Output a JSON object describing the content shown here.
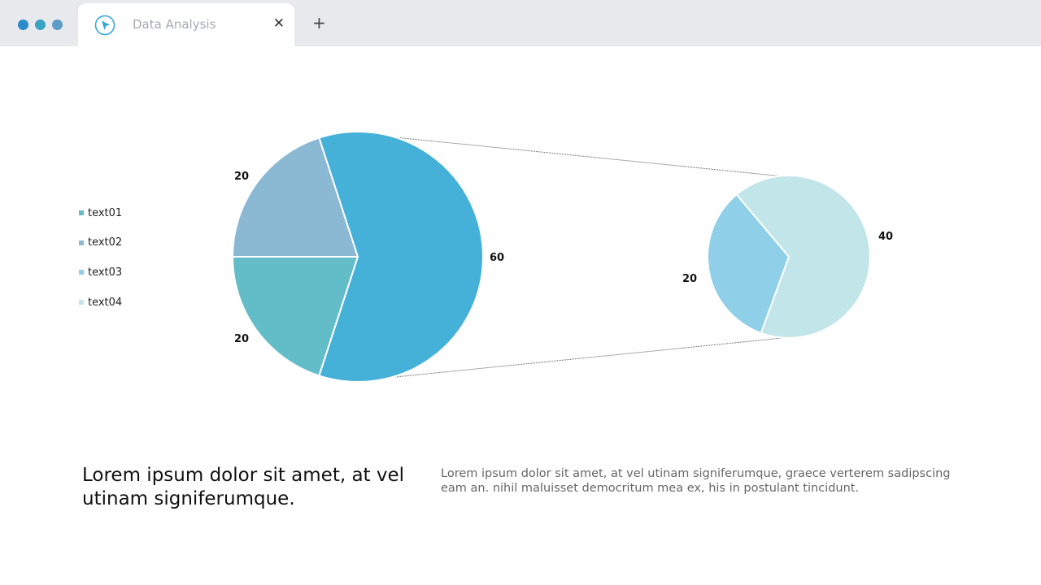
{
  "window": {
    "dot_colors": [
      "#2b8bc9",
      "#3aa3c2",
      "#5d9cc7"
    ],
    "tab_title": "Data Analysis",
    "tab_icon": "cursor-arrow-icon",
    "close_icon": "close-icon",
    "close_label": "✕",
    "new_tab_icon": "plus-icon",
    "new_tab_label": "+"
  },
  "chart_data": [
    {
      "type": "pie",
      "title": "",
      "categories": [
        "text01",
        "text02",
        "text03"
      ],
      "values": [
        20,
        20,
        60
      ],
      "colors": [
        "#63bdc8",
        "#8bb8d3",
        "#45b1d9"
      ],
      "data_labels": [
        "20",
        "20",
        "60"
      ]
    },
    {
      "type": "pie",
      "title": "",
      "categories": [
        "text03",
        "text04"
      ],
      "values": [
        20,
        40
      ],
      "colors": [
        "#8fcfe8",
        "#c2e5e9"
      ],
      "data_labels": [
        "20",
        "40"
      ]
    }
  ],
  "legend": {
    "placement": "left",
    "items": [
      {
        "label": "text01",
        "color": "#63bdc8"
      },
      {
        "label": "text02",
        "color": "#8bb8d3"
      },
      {
        "label": "text03",
        "color": "#8fcfe8"
      },
      {
        "label": "text04",
        "color": "#c2e5e9"
      }
    ]
  },
  "content": {
    "heading": "Lorem ipsum dolor sit amet, at vel utinam signiferumque.",
    "body": "Lorem ipsum dolor sit amet, at vel utinam signiferumque, graece verterem sadipscing eam an. nihil maluisset democritum mea ex, his in postulant tincidunt."
  }
}
